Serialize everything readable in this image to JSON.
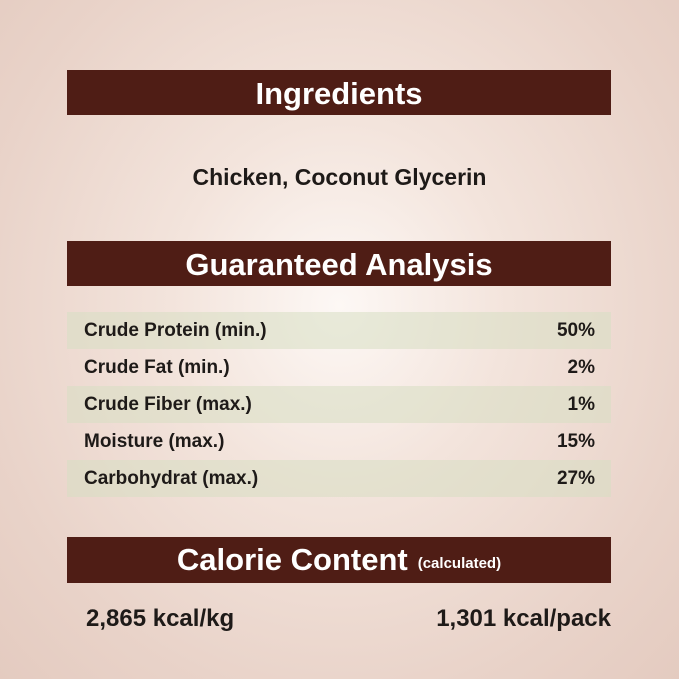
{
  "ingredients": {
    "title": "Ingredients",
    "text": "Chicken, Coconut Glycerin"
  },
  "analysis": {
    "title": "Guaranteed Analysis",
    "rows": [
      {
        "label": "Crude Protein (min.)",
        "value": "50%"
      },
      {
        "label": "Crude Fat (min.)",
        "value": "2%"
      },
      {
        "label": "Crude Fiber (max.)",
        "value": "1%"
      },
      {
        "label": "Moisture (max.)",
        "value": "15%"
      },
      {
        "label": "Carbohydrat (max.)",
        "value": "27%"
      }
    ]
  },
  "calorie": {
    "title": "Calorie Content",
    "note": "(calculated)",
    "per_kg": "2,865 kcal/kg",
    "per_pack": "1,301 kcal/pack"
  },
  "colors": {
    "banner": "#4f1d15",
    "row_shade": "#dde2cc"
  }
}
